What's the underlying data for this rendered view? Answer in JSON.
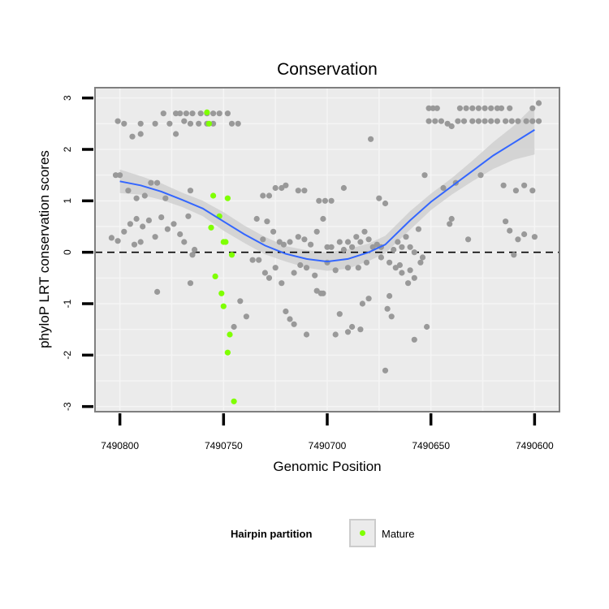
{
  "chart_data": {
    "type": "scatter",
    "title": "Conservation",
    "xlabel": "Genomic Position",
    "ylabel": "phyloP LRT conservation scores",
    "xlim": [
      7490812,
      7490588
    ],
    "ylim": [
      -3.1,
      3.2
    ],
    "x_reversed": true,
    "x_ticks": [
      7490800,
      7490750,
      7490700,
      7490650,
      7490600
    ],
    "x_tick_labels": [
      "7490800",
      "7490750",
      "7490700",
      "7490650",
      "7490600"
    ],
    "y_ticks": [
      3,
      2,
      1,
      0,
      -1,
      -2,
      -3
    ],
    "y_tick_labels": [
      "3",
      "2",
      "1",
      "0",
      "-1",
      "-2",
      "-3"
    ],
    "grid": true,
    "reference_line": {
      "y": 0,
      "style": "dashed",
      "color": "#000000"
    },
    "colors": {
      "panel_background": "#ebebeb",
      "panel_border": "#7f7f7f",
      "grid": "#f5f5f5",
      "other_points": "#999999",
      "mature_points": "#7fff00",
      "smooth_line": "#3366ff",
      "smooth_band": "#d0d0d0"
    },
    "legend": {
      "title": "Hairpin partition",
      "entries": [
        {
          "label": "Mature",
          "color": "#7fff00"
        }
      ],
      "position": "bottom"
    },
    "series": [
      {
        "name": "Other",
        "color": "#999999",
        "points": [
          [
            7490801,
            2.55
          ],
          [
            7490798,
            2.5
          ],
          [
            7490794,
            2.25
          ],
          [
            7490790,
            2.5
          ],
          [
            7490783,
            2.5
          ],
          [
            7490779,
            2.7
          ],
          [
            7490776,
            2.5
          ],
          [
            7490773,
            2.7
          ],
          [
            7490769,
            2.55
          ],
          [
            7490766,
            2.5
          ],
          [
            7490773,
            2.3
          ],
          [
            7490790,
            2.3
          ],
          [
            7490771,
            2.7
          ],
          [
            7490768,
            2.7
          ],
          [
            7490765,
            2.7
          ],
          [
            7490762,
            2.5
          ],
          [
            7490758,
            2.5
          ],
          [
            7490755,
            2.5
          ],
          [
            7490761,
            2.7
          ],
          [
            7490758,
            2.7
          ],
          [
            7490755,
            2.7
          ],
          [
            7490752,
            2.7
          ],
          [
            7490748,
            2.7
          ],
          [
            7490746,
            2.5
          ],
          [
            7490743,
            2.5
          ],
          [
            7490802,
            1.5
          ],
          [
            7490800,
            1.5
          ],
          [
            7490796,
            1.2
          ],
          [
            7490792,
            1.05
          ],
          [
            7490788,
            1.1
          ],
          [
            7490785,
            1.35
          ],
          [
            7490782,
            1.35
          ],
          [
            7490778,
            1.05
          ],
          [
            7490766,
            1.2
          ],
          [
            7490804,
            0.28
          ],
          [
            7490801,
            0.22
          ],
          [
            7490798,
            0.4
          ],
          [
            7490795,
            0.55
          ],
          [
            7490792,
            0.65
          ],
          [
            7490789,
            0.5
          ],
          [
            7490786,
            0.62
          ],
          [
            7490783,
            0.3
          ],
          [
            7490780,
            0.68
          ],
          [
            7490777,
            0.45
          ],
          [
            7490774,
            0.55
          ],
          [
            7490771,
            0.35
          ],
          [
            7490769,
            0.2
          ],
          [
            7490767,
            0.7
          ],
          [
            7490765,
            -0.05
          ],
          [
            7490793,
            0.15
          ],
          [
            7490790,
            0.2
          ],
          [
            7490764,
            0.05
          ],
          [
            7490782,
            -0.77
          ],
          [
            7490766,
            -0.6
          ],
          [
            7490734,
            0.65
          ],
          [
            7490731,
            0.25
          ],
          [
            7490729,
            0.6
          ],
          [
            7490726,
            0.4
          ],
          [
            7490723,
            0.2
          ],
          [
            7490721,
            0.15
          ],
          [
            7490718,
            0.2
          ],
          [
            7490714,
            0.3
          ],
          [
            7490711,
            0.25
          ],
          [
            7490708,
            0.15
          ],
          [
            7490705,
            0.4
          ],
          [
            7490702,
            0.65
          ],
          [
            7490700,
            0.1
          ],
          [
            7490698,
            0.1
          ],
          [
            7490694,
            0.2
          ],
          [
            7490692,
            0.05
          ],
          [
            7490690,
            0.2
          ],
          [
            7490688,
            0.1
          ],
          [
            7490686,
            0.3
          ],
          [
            7490684,
            0.2
          ],
          [
            7490682,
            0.4
          ],
          [
            7490680,
            0.25
          ],
          [
            7490678,
            0.1
          ],
          [
            7490676,
            0.15
          ],
          [
            7490731,
            1.1
          ],
          [
            7490728,
            1.1
          ],
          [
            7490725,
            1.25
          ],
          [
            7490722,
            1.25
          ],
          [
            7490720,
            1.3
          ],
          [
            7490714,
            1.2
          ],
          [
            7490711,
            1.2
          ],
          [
            7490704,
            1.0
          ],
          [
            7490701,
            1.0
          ],
          [
            7490698,
            1.0
          ],
          [
            7490692,
            1.25
          ],
          [
            7490675,
            1.05
          ],
          [
            7490672,
            0.95
          ],
          [
            7490679,
            2.2
          ],
          [
            7490736,
            -0.15
          ],
          [
            7490733,
            -0.15
          ],
          [
            7490730,
            -0.4
          ],
          [
            7490728,
            -0.5
          ],
          [
            7490725,
            -0.3
          ],
          [
            7490722,
            -0.6
          ],
          [
            7490716,
            -0.4
          ],
          [
            7490713,
            -0.25
          ],
          [
            7490710,
            -0.3
          ],
          [
            7490706,
            -0.45
          ],
          [
            7490703,
            -0.8
          ],
          [
            7490700,
            -0.2
          ],
          [
            7490696,
            -0.35
          ],
          [
            7490690,
            -0.3
          ],
          [
            7490685,
            -0.3
          ],
          [
            7490681,
            -0.2
          ],
          [
            7490674,
            -0.1
          ],
          [
            7490670,
            -0.2
          ],
          [
            7490742,
            -0.95
          ],
          [
            7490739,
            -1.25
          ],
          [
            7490720,
            -1.15
          ],
          [
            7490718,
            -1.3
          ],
          [
            7490716,
            -1.4
          ],
          [
            7490705,
            -0.75
          ],
          [
            7490702,
            -0.8
          ],
          [
            7490696,
            -1.6
          ],
          [
            7490690,
            -1.55
          ],
          [
            7490688,
            -1.45
          ],
          [
            7490683,
            -1.0
          ],
          [
            7490680,
            -0.9
          ],
          [
            7490745,
            -1.45
          ],
          [
            7490710,
            -1.6
          ],
          [
            7490694,
            -1.2
          ],
          [
            7490684,
            -1.5
          ],
          [
            7490672,
            -2.3
          ],
          [
            7490667,
            -0.3
          ],
          [
            7490664,
            -0.4
          ],
          [
            7490661,
            -0.6
          ],
          [
            7490658,
            -0.5
          ],
          [
            7490655,
            -0.2
          ],
          [
            7490652,
            -1.45
          ],
          [
            7490658,
            -1.7
          ],
          [
            7490670,
            -0.85
          ],
          [
            7490671,
            -1.1
          ],
          [
            7490669,
            -1.25
          ],
          [
            7490668,
            0.05
          ],
          [
            7490666,
            0.2
          ],
          [
            7490664,
            0.1
          ],
          [
            7490662,
            0.3
          ],
          [
            7490660,
            0.1
          ],
          [
            7490658,
            0.0
          ],
          [
            7490656,
            0.45
          ],
          [
            7490654,
            -0.1
          ],
          [
            7490674,
            0.1
          ],
          [
            7490665,
            -0.25
          ],
          [
            7490660,
            -0.35
          ],
          [
            7490653,
            1.5
          ],
          [
            7490644,
            1.25
          ],
          [
            7490638,
            1.35
          ],
          [
            7490626,
            1.5
          ],
          [
            7490615,
            1.3
          ],
          [
            7490609,
            1.2
          ],
          [
            7490605,
            1.3
          ],
          [
            7490601,
            1.2
          ],
          [
            7490598,
            2.9
          ],
          [
            7490641,
            0.55
          ],
          [
            7490640,
            0.65
          ],
          [
            7490632,
            0.25
          ],
          [
            7490614,
            0.6
          ],
          [
            7490612,
            0.42
          ],
          [
            7490608,
            0.25
          ],
          [
            7490605,
            0.35
          ],
          [
            7490600,
            0.3
          ],
          [
            7490610,
            -0.05
          ],
          [
            7490651,
            2.8
          ],
          [
            7490649,
            2.8
          ],
          [
            7490647,
            2.8
          ],
          [
            7490630,
            2.8
          ],
          [
            7490627,
            2.8
          ],
          [
            7490624,
            2.8
          ],
          [
            7490621,
            2.8
          ],
          [
            7490618,
            2.8
          ],
          [
            7490616,
            2.8
          ],
          [
            7490612,
            2.8
          ],
          [
            7490636,
            2.8
          ],
          [
            7490633,
            2.8
          ],
          [
            7490601,
            2.8
          ],
          [
            7490651,
            2.55
          ],
          [
            7490648,
            2.55
          ],
          [
            7490645,
            2.55
          ],
          [
            7490640,
            2.45
          ],
          [
            7490637,
            2.55
          ],
          [
            7490634,
            2.55
          ],
          [
            7490630,
            2.55
          ],
          [
            7490627,
            2.55
          ],
          [
            7490624,
            2.55
          ],
          [
            7490621,
            2.55
          ],
          [
            7490618,
            2.55
          ],
          [
            7490614,
            2.55
          ],
          [
            7490611,
            2.55
          ],
          [
            7490608,
            2.55
          ],
          [
            7490604,
            2.55
          ],
          [
            7490601,
            2.55
          ],
          [
            7490598,
            2.55
          ],
          [
            7490642,
            2.5
          ]
        ]
      },
      {
        "name": "Mature",
        "color": "#7fff00",
        "points": [
          [
            7490758,
            2.72
          ],
          [
            7490757,
            2.5
          ],
          [
            7490755,
            1.1
          ],
          [
            7490752,
            0.7
          ],
          [
            7490756,
            0.48
          ],
          [
            7490748,
            1.05
          ],
          [
            7490750,
            0.2
          ],
          [
            7490749,
            0.2
          ],
          [
            7490746,
            -0.05
          ],
          [
            7490754,
            -0.47
          ],
          [
            7490751,
            -0.8
          ],
          [
            7490750,
            -1.05
          ],
          [
            7490747,
            -1.6
          ],
          [
            7490748,
            -1.95
          ],
          [
            7490745,
            -2.9
          ]
        ]
      }
    ],
    "smooth": {
      "method": "loess",
      "x": [
        7490800,
        7490790,
        7490780,
        7490770,
        7490760,
        7490750,
        7490740,
        7490730,
        7490720,
        7490710,
        7490700,
        7490690,
        7490680,
        7490672,
        7490660,
        7490650,
        7490640,
        7490630,
        7490620,
        7490610,
        7490600
      ],
      "y": [
        1.38,
        1.3,
        1.18,
        1.02,
        0.85,
        0.6,
        0.35,
        0.13,
        -0.03,
        -0.13,
        -0.18,
        -0.13,
        0.0,
        0.15,
        0.62,
        0.98,
        1.28,
        1.58,
        1.88,
        2.13,
        2.38
      ],
      "lower": [
        1.15,
        1.12,
        1.02,
        0.88,
        0.7,
        0.42,
        0.18,
        -0.04,
        -0.18,
        -0.3,
        -0.36,
        -0.32,
        -0.17,
        -0.02,
        0.44,
        0.82,
        1.12,
        1.38,
        1.62,
        1.8,
        1.9
      ],
      "upper": [
        1.61,
        1.48,
        1.34,
        1.16,
        1.0,
        0.78,
        0.52,
        0.3,
        0.12,
        0.04,
        0.0,
        0.06,
        0.17,
        0.32,
        0.8,
        1.14,
        1.44,
        1.78,
        2.14,
        2.46,
        2.86
      ]
    }
  }
}
